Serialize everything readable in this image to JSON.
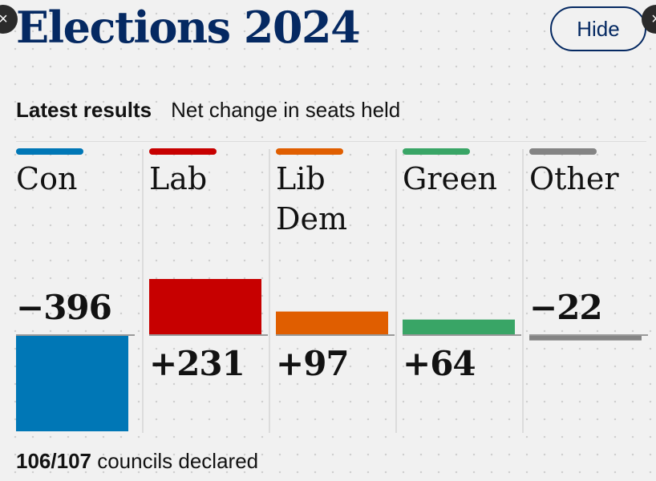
{
  "header": {
    "title": "Elections 2024",
    "hide_label": "Hide",
    "close_icon": "×"
  },
  "subheading": {
    "label": "Latest results",
    "description": "Net change in seats held"
  },
  "footer": {
    "declared": "106/107",
    "text": "councils declared"
  },
  "chart_data": {
    "type": "bar",
    "categories": [
      "Con",
      "Lab",
      "Lib Dem",
      "Green",
      "Other"
    ],
    "values": [
      -396,
      231,
      97,
      64,
      -22
    ],
    "labels": [
      "−396",
      "+231",
      "+97",
      "+64",
      "−22"
    ],
    "colors": [
      "#0077b6",
      "#c70000",
      "#e05e00",
      "#39a566",
      "#848484"
    ],
    "title": "",
    "xlabel": "",
    "ylabel": "",
    "ylim": [
      -396,
      231
    ]
  }
}
